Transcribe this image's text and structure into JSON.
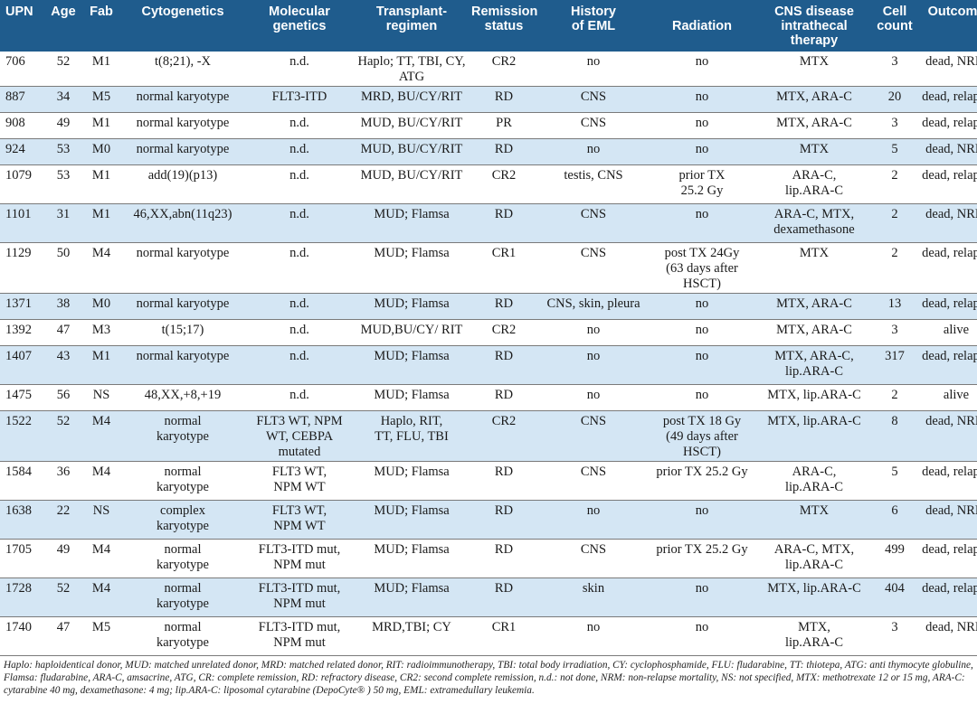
{
  "headers": [
    "UPN",
    "Age",
    "Fab",
    "Cytogenetics",
    "Molecular genetics",
    "Transplant-regimen",
    "Remission status",
    "History of EML",
    "Radiation",
    "CNS disease intrathecal therapy",
    "Cell count",
    "Outcome"
  ],
  "header_lines": [
    [
      "UPN",
      ""
    ],
    [
      "Age",
      ""
    ],
    [
      "Fab",
      ""
    ],
    [
      "Cytogenetics",
      ""
    ],
    [
      "Molecular",
      "genetics"
    ],
    [
      "Transplant-",
      "regimen"
    ],
    [
      "Remission",
      "status"
    ],
    [
      "History",
      "of EML"
    ],
    [
      "",
      "Radiation"
    ],
    [
      "CNS disease",
      "intrathecal therapy"
    ],
    [
      "Cell",
      "count"
    ],
    [
      "Outcome",
      ""
    ]
  ],
  "rows": [
    {
      "upn": "706",
      "age": "52",
      "fab": "M1",
      "cyto": "t(8;21), -X",
      "mol": "n.d.",
      "regimen": "Haplo; TT, TBI, CY, ATG",
      "remission": "CR2",
      "eml": "no",
      "radiation": "no",
      "cns": "MTX",
      "cells": "3",
      "outcome": "dead, NRM"
    },
    {
      "upn": "887",
      "age": "34",
      "fab": "M5",
      "cyto": "normal karyotype",
      "mol": "FLT3-ITD",
      "regimen": "MRD, BU/CY/RIT",
      "remission": "RD",
      "eml": "CNS",
      "radiation": "no",
      "cns": "MTX, ARA-C",
      "cells": "20",
      "outcome": "dead, relapse"
    },
    {
      "upn": "908",
      "age": "49",
      "fab": "M1",
      "cyto": "normal karyotype",
      "mol": "n.d.",
      "regimen": "MUD, BU/CY/RIT",
      "remission": "PR",
      "eml": "CNS",
      "radiation": "no",
      "cns": "MTX, ARA-C",
      "cells": "3",
      "outcome": "dead, relapse"
    },
    {
      "upn": "924",
      "age": "53",
      "fab": "M0",
      "cyto": "normal karyotype",
      "mol": "n.d.",
      "regimen": "MUD, BU/CY/RIT",
      "remission": "RD",
      "eml": "no",
      "radiation": "no",
      "cns": "MTX",
      "cells": "5",
      "outcome": "dead, NRM"
    },
    {
      "upn": "1079",
      "age": "53",
      "fab": "M1",
      "cyto": "add(19)(p13)",
      "mol": "n.d.",
      "regimen": "MUD, BU/CY/RIT",
      "remission": "CR2",
      "eml": "testis, CNS",
      "radiation": "prior TX\n25.2 Gy",
      "cns": "ARA-C,\nlip.ARA-C",
      "cells": "2",
      "outcome": "dead, relapse"
    },
    {
      "upn": "1101",
      "age": "31",
      "fab": "M1",
      "cyto": "46,XX,abn(11q23)",
      "mol": "n.d.",
      "regimen": "MUD; Flamsa",
      "remission": "RD",
      "eml": "CNS",
      "radiation": "no",
      "cns": "ARA-C, MTX,\ndexamethasone",
      "cells": "2",
      "outcome": "dead, NRM"
    },
    {
      "upn": "1129",
      "age": "50",
      "fab": "M4",
      "cyto": "normal karyotype",
      "mol": "n.d.",
      "regimen": "MUD; Flamsa",
      "remission": "CR1",
      "eml": "CNS",
      "radiation": "post TX 24Gy\n(63 days after HSCT)",
      "cns": "MTX",
      "cells": "2",
      "outcome": "dead, relapse"
    },
    {
      "upn": "1371",
      "age": "38",
      "fab": "M0",
      "cyto": "normal karyotype",
      "mol": "n.d.",
      "regimen": "MUD; Flamsa",
      "remission": "RD",
      "eml": "CNS, skin, pleura",
      "radiation": "no",
      "cns": "MTX, ARA-C",
      "cells": "13",
      "outcome": "dead, relapse"
    },
    {
      "upn": "1392",
      "age": "47",
      "fab": "M3",
      "cyto": "t(15;17)",
      "mol": "n.d.",
      "regimen": "MUD,BU/CY/ RIT",
      "remission": "CR2",
      "eml": "no",
      "radiation": "no",
      "cns": "MTX, ARA-C",
      "cells": "3",
      "outcome": "alive"
    },
    {
      "upn": "1407",
      "age": "43",
      "fab": "M1",
      "cyto": "normal karyotype",
      "mol": "n.d.",
      "regimen": "MUD; Flamsa",
      "remission": "RD",
      "eml": "no",
      "radiation": "no",
      "cns": "MTX, ARA-C,\nlip.ARA-C",
      "cells": "317",
      "outcome": "dead, relapse"
    },
    {
      "upn": "1475",
      "age": "56",
      "fab": "NS",
      "cyto": "48,XX,+8,+19",
      "mol": "n.d.",
      "regimen": "MUD; Flamsa",
      "remission": "RD",
      "eml": "no",
      "radiation": "no",
      "cns": "MTX, lip.ARA-C",
      "cells": "2",
      "outcome": "alive"
    },
    {
      "upn": "1522",
      "age": "52",
      "fab": "M4",
      "cyto": "normal\nkaryotype",
      "mol": "FLT3 WT, NPM\nWT, CEBPA mutated",
      "regimen": "Haplo, RIT,\nTT, FLU, TBI",
      "remission": "CR2",
      "eml": "CNS",
      "radiation": "post TX 18 Gy\n(49 days after HSCT)",
      "cns": "MTX, lip.ARA-C",
      "cells": "8",
      "outcome": "dead, NRM"
    },
    {
      "upn": "1584",
      "age": "36",
      "fab": "M4",
      "cyto": "normal\nkaryotype",
      "mol": "FLT3 WT,\nNPM WT",
      "regimen": "MUD; Flamsa",
      "remission": "RD",
      "eml": "CNS",
      "radiation": "prior TX 25.2 Gy",
      "cns": "ARA-C,\nlip.ARA-C",
      "cells": "5",
      "outcome": "dead, relapse"
    },
    {
      "upn": "1638",
      "age": "22",
      "fab": "NS",
      "cyto": "complex\nkaryotype",
      "mol": "FLT3 WT,\nNPM WT",
      "regimen": "MUD; Flamsa",
      "remission": "RD",
      "eml": "no",
      "radiation": "no",
      "cns": "MTX",
      "cells": "6",
      "outcome": "dead, NRM"
    },
    {
      "upn": "1705",
      "age": "49",
      "fab": "M4",
      "cyto": "normal\nkaryotype",
      "mol": "FLT3-ITD mut,\nNPM mut",
      "regimen": "MUD; Flamsa",
      "remission": "RD",
      "eml": "CNS",
      "radiation": "prior TX 25.2 Gy",
      "cns": "ARA-C, MTX,\nlip.ARA-C",
      "cells": "499",
      "outcome": "dead, relapse"
    },
    {
      "upn": "1728",
      "age": "52",
      "fab": "M4",
      "cyto": "normal\nkaryotype",
      "mol": "FLT3-ITD mut,\nNPM mut",
      "regimen": "MUD; Flamsa",
      "remission": "RD",
      "eml": "skin",
      "radiation": "no",
      "cns": "MTX, lip.ARA-C",
      "cells": "404",
      "outcome": "dead, relapse"
    },
    {
      "upn": "1740",
      "age": "47",
      "fab": "M5",
      "cyto": "normal\nkaryotype",
      "mol": "FLT3-ITD mut,\nNPM mut",
      "regimen": "MRD,TBI; CY",
      "remission": "CR1",
      "eml": "no",
      "radiation": "no",
      "cns": "MTX,\nlip.ARA-C",
      "cells": "3",
      "outcome": "dead, NRM"
    }
  ],
  "footnote": "Haplo: haploidentical donor, MUD: matched unrelated donor, MRD: matched related donor, RIT: radioimmunotherapy, TBI: total body irradiation, CY: cyclophosphamide, FLU: fludarabine, TT: thiotepa, ATG: anti thymocyte globuline, Flamsa: fludarabine, ARA-C, amsacrine, ATG, CR: complete remission, RD: refractory disease, CR2: second complete remission, n.d.: not done, NRM: non-relapse mortality, NS: not specified, MTX: methotrexate 12 or 15 mg, ARA-C: cytarabine 40 mg, dexamethasone: 4 mg; lip.ARA-C: liposomal cytarabine (DepoCyte® ) 50 mg, EML: extramedullary leukemia."
}
